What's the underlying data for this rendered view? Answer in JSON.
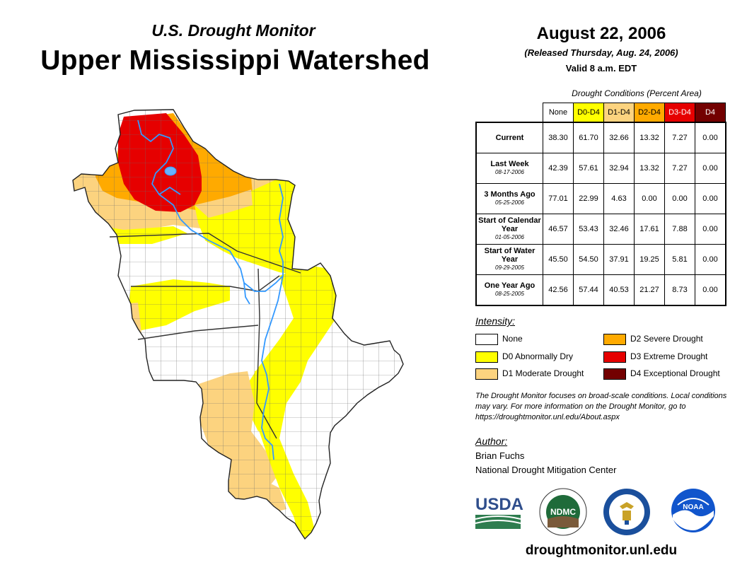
{
  "header": {
    "subtitle": "U.S. Drought Monitor",
    "title": "Upper Mississippi Watershed",
    "date": "August 22, 2006",
    "released": "(Released Thursday, Aug. 24, 2006)",
    "valid": "Valid 8 a.m. EDT"
  },
  "table": {
    "caption": "Drought Conditions (Percent Area)",
    "columns": [
      "None",
      "D0-D4",
      "D1-D4",
      "D2-D4",
      "D3-D4",
      "D4"
    ],
    "column_colors": [
      "#ffffff",
      "#ffff00",
      "#fcd37f",
      "#ffaa00",
      "#e60000",
      "#730000"
    ],
    "column_text_colors": [
      "#000000",
      "#000000",
      "#000000",
      "#000000",
      "#ffffff",
      "#ffffff"
    ],
    "rows": [
      {
        "label": "Current",
        "date": "",
        "values": [
          "38.30",
          "61.70",
          "32.66",
          "13.32",
          "7.27",
          "0.00"
        ]
      },
      {
        "label": "Last Week",
        "date": "08-17-2006",
        "values": [
          "42.39",
          "57.61",
          "32.94",
          "13.32",
          "7.27",
          "0.00"
        ]
      },
      {
        "label": "3 Months Ago",
        "date": "05-25-2006",
        "values": [
          "77.01",
          "22.99",
          "4.63",
          "0.00",
          "0.00",
          "0.00"
        ]
      },
      {
        "label": "Start of Calendar Year",
        "date": "01-05-2006",
        "values": [
          "46.57",
          "53.43",
          "32.46",
          "17.61",
          "7.88",
          "0.00"
        ]
      },
      {
        "label": "Start of Water Year",
        "date": "09-29-2005",
        "values": [
          "45.50",
          "54.50",
          "37.91",
          "19.25",
          "5.81",
          "0.00"
        ]
      },
      {
        "label": "One Year Ago",
        "date": "08-25-2005",
        "values": [
          "42.56",
          "57.44",
          "40.53",
          "21.27",
          "8.73",
          "0.00"
        ]
      }
    ]
  },
  "legend": {
    "title": "Intensity:",
    "items": [
      {
        "label": "None",
        "color": "#ffffff"
      },
      {
        "label": "D0 Abnormally Dry",
        "color": "#ffff00"
      },
      {
        "label": "D1 Moderate Drought",
        "color": "#fcd37f"
      },
      {
        "label": "D2 Severe Drought",
        "color": "#ffaa00"
      },
      {
        "label": "D3 Extreme Drought",
        "color": "#e60000"
      },
      {
        "label": "D4 Exceptional Drought",
        "color": "#730000"
      }
    ]
  },
  "note": "The Drought Monitor focuses on broad-scale conditions. Local conditions may vary. For more information on the Drought Monitor, go to https://droughtmonitor.unl.edu/About.aspx",
  "author": {
    "title": "Author:",
    "name": "Brian Fuchs",
    "org": "National Drought Mitigation Center"
  },
  "logos": {
    "usda": "USDA",
    "ndmc": "NDMC",
    "noaa": "NOAA"
  },
  "url": "droughtmonitor.unl.edu",
  "map": {
    "river_color": "#3399ff",
    "border_color": "#555555"
  }
}
